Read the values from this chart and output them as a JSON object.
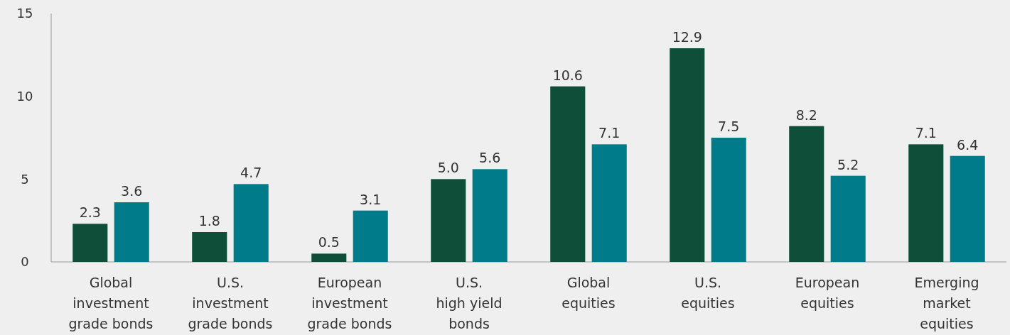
{
  "chart_data": {
    "type": "bar",
    "categories": [
      "Global\ninvestment\ngrade bonds",
      "U.S.\ninvestment\ngrade bonds",
      "European\ninvestment\ngrade bonds",
      "U.S.\nhigh yield\nbonds",
      "Global\nequities",
      "U.S.\nequities",
      "European\nequities",
      "Emerging\nmarket\nequities"
    ],
    "series": [
      {
        "color": "#0f4f3a",
        "values": [
          2.3,
          1.8,
          0.5,
          5.0,
          10.6,
          12.9,
          8.2,
          7.1
        ],
        "value_labels": [
          "2.3",
          "1.8",
          "0.5",
          "5.0",
          "10.6",
          "12.9",
          "8.2",
          "7.1"
        ]
      },
      {
        "color": "#007b8a",
        "values": [
          3.6,
          4.7,
          3.1,
          5.6,
          7.1,
          7.5,
          5.2,
          6.4
        ],
        "value_labels": [
          "3.6",
          "4.7",
          "3.1",
          "5.6",
          "7.1",
          "7.5",
          "5.2",
          "6.4"
        ]
      }
    ],
    "ylim": [
      0,
      15
    ],
    "yticks": [
      0,
      5,
      10,
      15
    ]
  }
}
